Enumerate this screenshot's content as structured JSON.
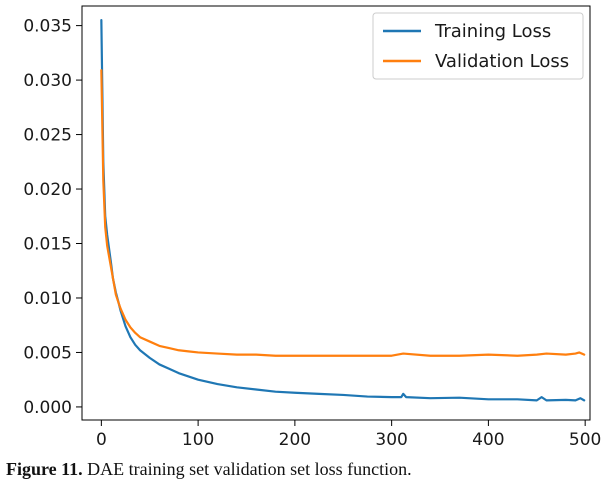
{
  "chart_data": {
    "type": "line",
    "title": "",
    "xlabel": "",
    "ylabel": "",
    "xlim": [
      -20,
      505
    ],
    "ylim": [
      -0.0012,
      0.0368
    ],
    "xticks": [
      0,
      100,
      200,
      300,
      400,
      500
    ],
    "xtick_labels": [
      "0",
      "100",
      "200",
      "300",
      "400",
      "500"
    ],
    "yticks": [
      0.0,
      0.005,
      0.01,
      0.015,
      0.02,
      0.025,
      0.03,
      0.035
    ],
    "ytick_labels": [
      "0.000",
      "0.005",
      "0.010",
      "0.015",
      "0.020",
      "0.025",
      "0.030",
      "0.035"
    ],
    "grid": false,
    "legend_position": "top-right",
    "series": [
      {
        "name": "Training Loss",
        "color": "#1f77b4",
        "x": [
          0,
          2,
          4,
          6,
          8,
          10,
          12,
          15,
          18,
          20,
          25,
          30,
          35,
          40,
          50,
          60,
          70,
          80,
          90,
          100,
          120,
          140,
          160,
          180,
          200,
          225,
          250,
          275,
          300,
          310,
          312,
          315,
          340,
          370,
          400,
          430,
          450,
          455,
          460,
          480,
          490,
          495,
          499
        ],
        "values": [
          0.0355,
          0.0225,
          0.0175,
          0.0158,
          0.0145,
          0.0132,
          0.0118,
          0.0105,
          0.0095,
          0.0088,
          0.0074,
          0.0064,
          0.0057,
          0.0052,
          0.0045,
          0.0039,
          0.0035,
          0.0031,
          0.0028,
          0.0025,
          0.0021,
          0.0018,
          0.0016,
          0.0014,
          0.0013,
          0.0012,
          0.0011,
          0.00095,
          0.0009,
          0.0009,
          0.0012,
          0.0009,
          0.0008,
          0.00085,
          0.0007,
          0.0007,
          0.0006,
          0.0009,
          0.0006,
          0.00065,
          0.0006,
          0.0008,
          0.0006
        ]
      },
      {
        "name": "Validation Loss",
        "color": "#ff7f0e",
        "x": [
          0,
          2,
          4,
          6,
          8,
          10,
          12,
          15,
          18,
          20,
          25,
          30,
          35,
          40,
          50,
          60,
          70,
          80,
          90,
          100,
          120,
          140,
          160,
          180,
          200,
          225,
          250,
          275,
          300,
          312,
          340,
          370,
          400,
          430,
          450,
          460,
          480,
          490,
          494,
          499
        ],
        "values": [
          0.0309,
          0.0208,
          0.0165,
          0.0148,
          0.0138,
          0.0128,
          0.0118,
          0.0103,
          0.0095,
          0.009,
          0.008,
          0.0073,
          0.0068,
          0.0064,
          0.006,
          0.0056,
          0.0054,
          0.0052,
          0.0051,
          0.005,
          0.0049,
          0.0048,
          0.0048,
          0.0047,
          0.0047,
          0.0047,
          0.0047,
          0.0047,
          0.0047,
          0.0049,
          0.0047,
          0.0047,
          0.0048,
          0.0047,
          0.0048,
          0.0049,
          0.0048,
          0.0049,
          0.005,
          0.0048
        ]
      }
    ]
  },
  "figure_caption": {
    "label": "Figure 11.",
    "text": " DAE training set validation set loss function."
  }
}
